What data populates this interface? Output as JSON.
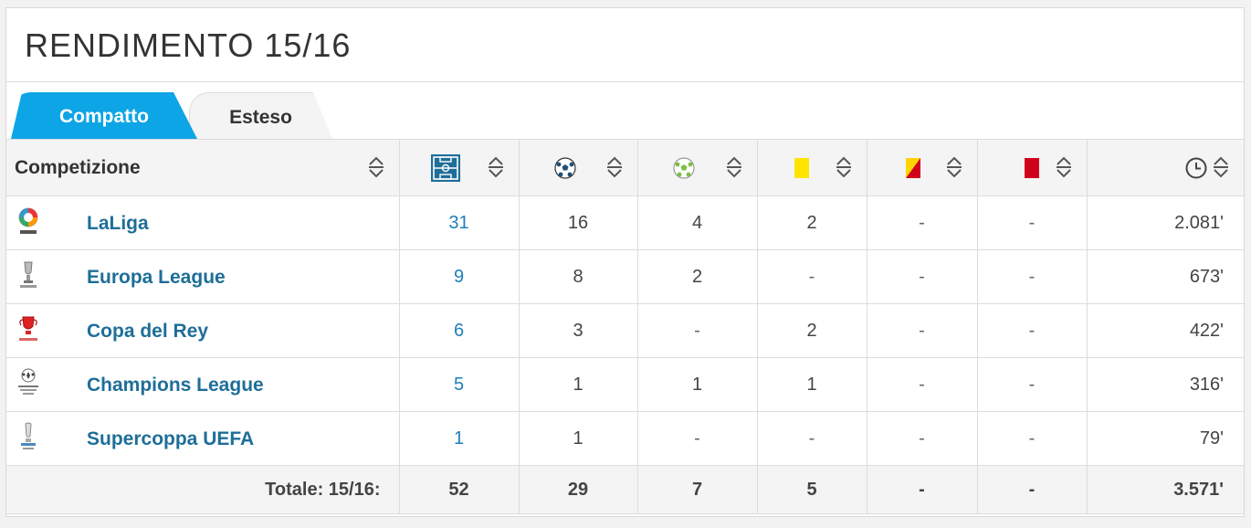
{
  "title": "RENDIMENTO 15/16",
  "tabs": {
    "active": "Compatto",
    "inactive": "Esteso"
  },
  "header": {
    "competition": "Competizione",
    "columns": [
      {
        "icon": "field-icon"
      },
      {
        "icon": "ball-icon"
      },
      {
        "icon": "assist-ball-icon"
      },
      {
        "icon": "yellow-card-icon"
      },
      {
        "icon": "yellow-red-card-icon"
      },
      {
        "icon": "red-card-icon"
      },
      {
        "icon": "clock-icon"
      }
    ]
  },
  "colors": {
    "accent": "#0ea5e6",
    "link": "#1e6e98",
    "yellow": "#ffe400",
    "red": "#d0021b"
  },
  "rows": [
    {
      "name": "LaLiga",
      "logo": "laliga-logo",
      "presenze": "31",
      "gol": "16",
      "assist": "4",
      "gialli": "2",
      "gialloRossi": "-",
      "rossi": "-",
      "minuti": "2.081'"
    },
    {
      "name": "Europa League",
      "logo": "europa-league-logo",
      "presenze": "9",
      "gol": "8",
      "assist": "2",
      "gialli": "-",
      "gialloRossi": "-",
      "rossi": "-",
      "minuti": "673'"
    },
    {
      "name": "Copa del Rey",
      "logo": "copa-del-rey-logo",
      "presenze": "6",
      "gol": "3",
      "assist": "-",
      "gialli": "2",
      "gialloRossi": "-",
      "rossi": "-",
      "minuti": "422'"
    },
    {
      "name": "Champions League",
      "logo": "champions-league-logo",
      "presenze": "5",
      "gol": "1",
      "assist": "1",
      "gialli": "1",
      "gialloRossi": "-",
      "rossi": "-",
      "minuti": "316'"
    },
    {
      "name": "Supercoppa UEFA",
      "logo": "supercoppa-uefa-logo",
      "presenze": "1",
      "gol": "1",
      "assist": "-",
      "gialli": "-",
      "gialloRossi": "-",
      "rossi": "-",
      "minuti": "79'"
    }
  ],
  "totals": {
    "label": "Totale: 15/16:",
    "presenze": "52",
    "gol": "29",
    "assist": "7",
    "gialli": "5",
    "gialloRossi": "-",
    "rossi": "-",
    "minuti": "3.571'"
  }
}
